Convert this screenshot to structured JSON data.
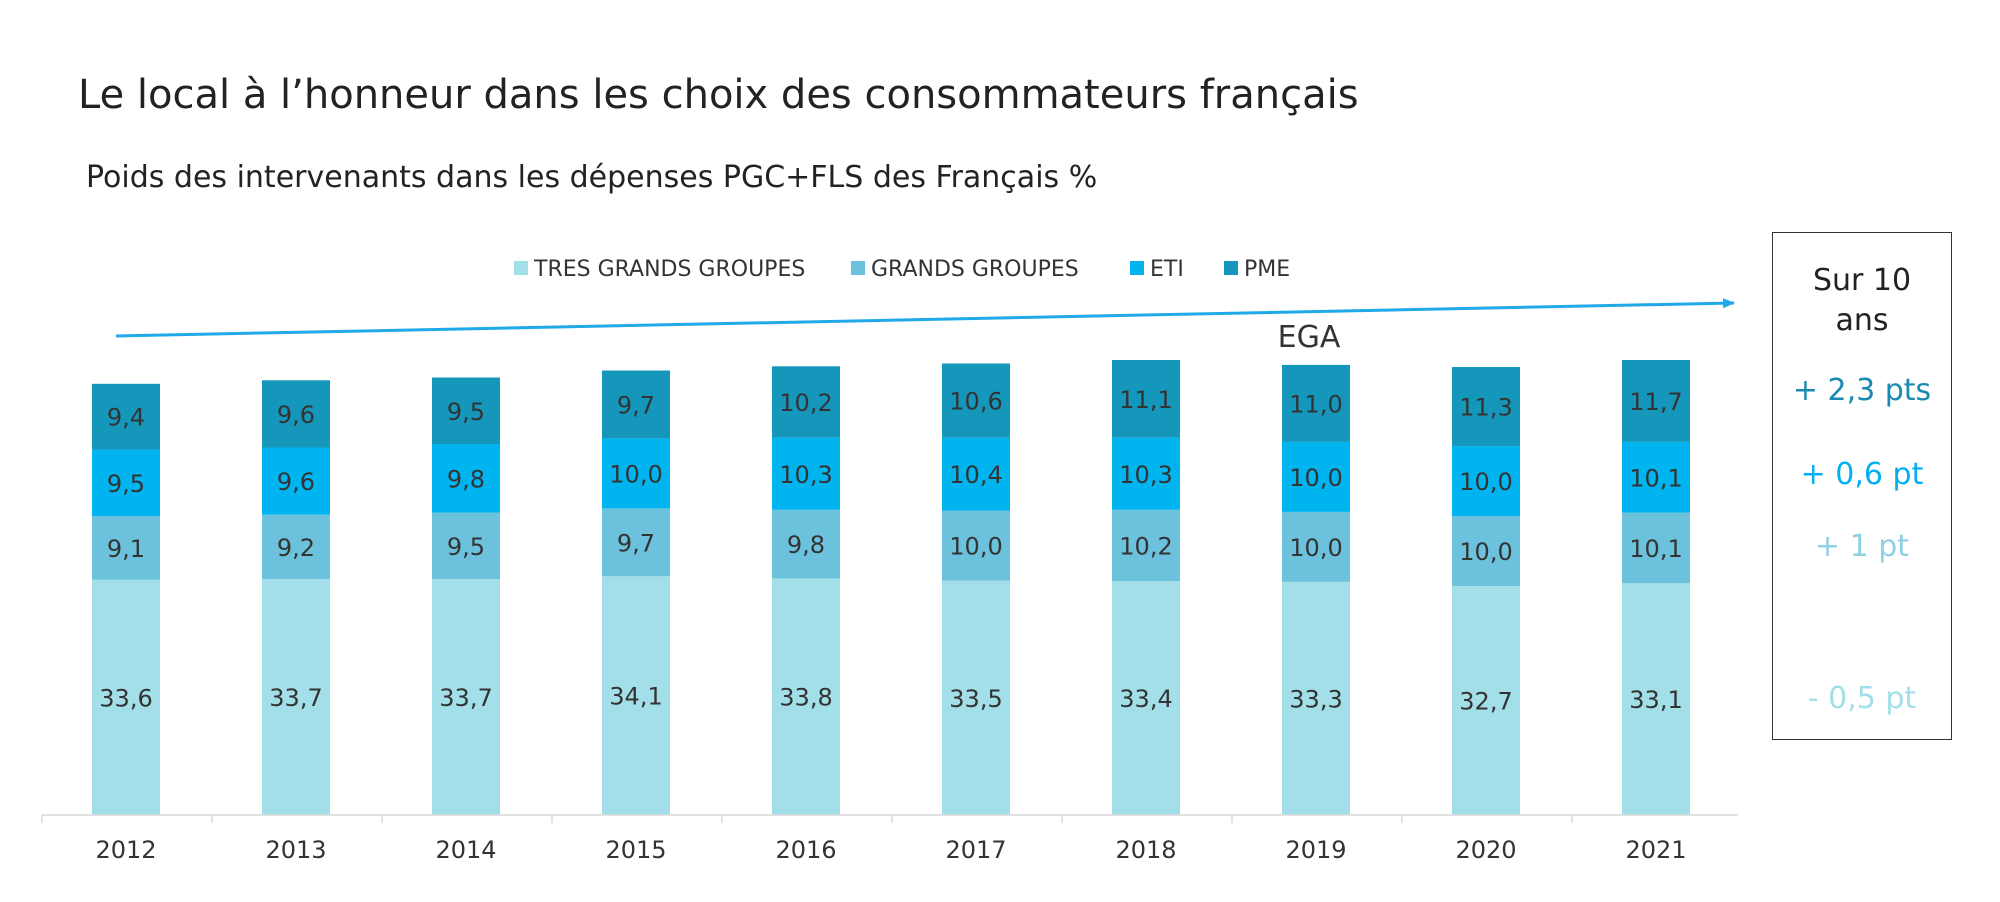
{
  "title": "Le local à l’honneur dans les choix des consommateurs français",
  "subtitle": "Poids des intervenants dans les dépenses PGC+FLS des Français %",
  "annotation": "EGA",
  "summary_box": {
    "heading_line1": "Sur 10",
    "heading_line2": "ans",
    "pme": "+ 2,3 pts",
    "eti": "+ 0,6 pt",
    "grands_groupes": "+ 1 pt",
    "tres_grands_groupes": "-  0,5 pt"
  },
  "colors": {
    "tres_grands_groupes": "#a3dfe8",
    "grands_groupes": "#6cc2dc",
    "eti": "#00b4f0",
    "pme": "#1597bc",
    "arrow": "#1fa9e8",
    "pme_text": "#1a8ab0",
    "eti_text": "#00b0f0",
    "gg_text": "#8fd0e2",
    "tgg_text": "#a3dfe8"
  },
  "chart_data": {
    "type": "bar",
    "stacked": true,
    "categories": [
      "2012",
      "2013",
      "2014",
      "2015",
      "2016",
      "2017",
      "2018",
      "2019",
      "2020",
      "2021"
    ],
    "series": [
      {
        "name": "TRES GRANDS GROUPES",
        "values": [
          33.6,
          33.7,
          33.7,
          34.1,
          33.8,
          33.5,
          33.4,
          33.3,
          32.7,
          33.1
        ],
        "labels": [
          "33,6",
          "33,7",
          "33,7",
          "34,1",
          "33,8",
          "33,5",
          "33,4",
          "33,3",
          "32,7",
          "33,1"
        ]
      },
      {
        "name": "GRANDS GROUPES",
        "values": [
          9.1,
          9.2,
          9.5,
          9.7,
          9.8,
          10.0,
          10.2,
          10.0,
          10.0,
          10.1
        ],
        "labels": [
          "9,1",
          "9,2",
          "9,5",
          "9,7",
          "9,8",
          "10,0",
          "10,2",
          "10,0",
          "10,0",
          "10,1"
        ]
      },
      {
        "name": "ETI",
        "values": [
          9.5,
          9.6,
          9.8,
          10.0,
          10.3,
          10.4,
          10.3,
          10.0,
          10.0,
          10.1
        ],
        "labels": [
          "9,5",
          "9,6",
          "9,8",
          "10,0",
          "10,3",
          "10,4",
          "10,3",
          "10,0",
          "10,0",
          "10,1"
        ]
      },
      {
        "name": "PME",
        "values": [
          9.4,
          9.6,
          9.5,
          9.7,
          10.2,
          10.6,
          11.1,
          11.0,
          11.3,
          11.7
        ],
        "labels": [
          "9,4",
          "9,6",
          "9,5",
          "9,7",
          "10,2",
          "10,6",
          "11,1",
          "11,0",
          "11,3",
          "11,7"
        ]
      }
    ],
    "legend_position": "top",
    "grid": false
  }
}
